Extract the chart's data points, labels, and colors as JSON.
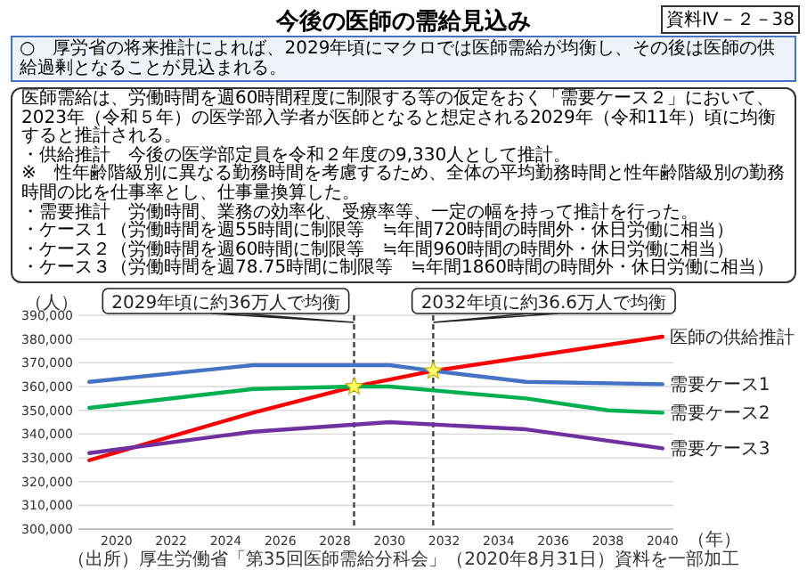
{
  "chart_data": {
    "type": "line",
    "title": "今後の医師の需給見込み",
    "subtitle": "○　厚労省の将来推計によれば、2029年頃にマクロでは医師需給が均衡し、その後は医師の供給過剰となることが見込まれる。",
    "xlabel": "（年）",
    "ylabel": "（人）",
    "annotations": [
      "資料Ⅳ－２－38",
      "医師需給は、労働時間を週60時間程度に制限する等の仮定をおく「需要ケース２」において、2023年（令和５年）の医学部入学者が医師となると想定される2029年（令和11年）頃に均衡すると推計される。",
      "・供給推計　今後の医学部定員を令和２年度の9,330人として推計。",
      "※　性年齢階級別に異なる勤務時間を考慮するため、全体の平均勤務時間と性年齢階級別の勤務時間の比を仕事率とし、仕事量換算した。",
      "・需要推計　労働時間、業務の効率化、受療率等、一定の幅を持って推計を行った。",
      "・ケース１（労働時間を週55時間に制限等　≒年間720時間の時間外・休日労働に相当）",
      "・ケース２（労働時間を週60時間に制限等　≒年間960時間の時間外・休日労働に相当）",
      "・ケース３（労働時間を週78.75時間に制限等　≒年間1860時間の時間外・休日労働に相当）",
      "（出所）厚生労働省「第35回医師需給分科会」（2020年8月31日）資料を一部加工"
    ],
    "xlim": [
      2018.6,
      2040.4
    ],
    "xticks": [
      2020,
      2022,
      2024,
      2026,
      2028,
      2030,
      2032,
      2034,
      2036,
      2038,
      2040
    ],
    "ylim": [
      300000,
      390000
    ],
    "yticks": [
      {
        "value": 300000,
        "label": "300,000"
      },
      {
        "value": 310000,
        "label": "310,000"
      },
      {
        "value": 320000,
        "label": "320,000"
      },
      {
        "value": 330000,
        "label": "330,000"
      },
      {
        "value": 340000,
        "label": "340,000"
      },
      {
        "value": 350000,
        "label": "350,000"
      },
      {
        "value": 360000,
        "label": "360,000"
      },
      {
        "value": 370000,
        "label": "370,000"
      },
      {
        "value": 380000,
        "label": "380,000"
      },
      {
        "value": 390000,
        "label": "390,000"
      }
    ],
    "grid": "y",
    "series": [
      {
        "name": "医師の供給推計",
        "color": "#ff0000",
        "x": [
          2019,
          2025,
          2028.7,
          2031.6,
          2040
        ],
        "values": [
          329000,
          349000,
          360000,
          366600,
          381000
        ]
      },
      {
        "name": "需要ケース1",
        "color": "#4472c4",
        "x": [
          2019,
          2025,
          2030,
          2031.6,
          2035,
          2040
        ],
        "values": [
          362000,
          369000,
          369000,
          366600,
          362000,
          361000
        ]
      },
      {
        "name": "需要ケース2",
        "color": "#00b050",
        "x": [
          2019,
          2025,
          2028.7,
          2030,
          2035,
          2038,
          2040
        ],
        "values": [
          351000,
          359000,
          360000,
          360000,
          355000,
          350000,
          349000
        ]
      },
      {
        "name": "需要ケース3",
        "color": "#7030a0",
        "x": [
          2019,
          2025,
          2030,
          2035,
          2040
        ],
        "values": [
          332000,
          341000,
          345000,
          342000,
          334000
        ]
      },
      {
        "type": "scatter",
        "marker": "star",
        "color": "#ffff66",
        "x": [
          2028.7,
          2031.6
        ],
        "values": [
          360000,
          366600
        ]
      }
    ],
    "ref_lines": [
      {
        "axis": "x",
        "value": 2028.7,
        "line_style": "dashed",
        "color": "#404040",
        "label": "2029年頃に約36万人で均衡"
      },
      {
        "axis": "x",
        "value": 2031.6,
        "line_style": "dashed",
        "color": "#404040",
        "label": "2032年頃に約36.6万人で均衡"
      }
    ]
  }
}
